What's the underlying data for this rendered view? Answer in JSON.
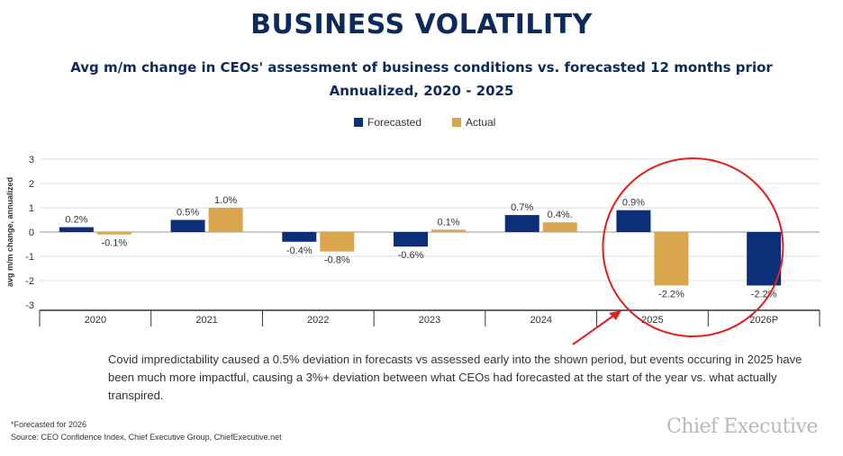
{
  "header": {
    "title": "BUSINESS VOLATILITY",
    "subtitle_line1": "Avg m/m change in CEOs' assessment of business conditions vs. forecasted 12 months prior",
    "subtitle_line2": "Annualized, 2020 - 2025"
  },
  "chart_data": {
    "type": "bar",
    "ylabel": "avg m/m change, annualized",
    "ylim": [
      -3,
      3
    ],
    "yticks": [
      3,
      2,
      1,
      0,
      -1,
      -2,
      -3
    ],
    "grid": true,
    "legend_position": "top-center",
    "categories": [
      "2020",
      "2021",
      "2022",
      "2023",
      "2024",
      "2025",
      "2026P"
    ],
    "series": [
      {
        "name": "Forecasted",
        "color": "#0d2f7a",
        "values": [
          0.2,
          0.5,
          -0.4,
          -0.6,
          0.7,
          0.9,
          -2.2
        ],
        "labels": [
          "0.2%",
          "0.5%",
          "-0.4%",
          "-0.6%",
          "0.7%",
          "0.9%",
          "-2.2%"
        ]
      },
      {
        "name": "Actual",
        "color": "#dba54e",
        "values": [
          -0.1,
          1.0,
          -0.8,
          0.1,
          0.4,
          -2.2,
          null
        ],
        "labels": [
          "-0.1%",
          "1.0%",
          "-0.8%",
          "0.1%",
          "0.4%.",
          "-2.2%",
          ""
        ]
      }
    ],
    "highlight": {
      "category": "2025",
      "color": "#e02020"
    }
  },
  "annotation": {
    "text": "Covid impredictability caused a 0.5% deviation in forecasts vs assessed early into the shown period, but events occuring in 2025 have been much more impactful, causing a 3%+ deviation between what CEOs had forecasted at the start of the year vs. what actually transpired."
  },
  "footer": {
    "footnote": "*Forecasted for 2026",
    "source": "Source: CEO Confidence Index, Chief Executive Group, ChiefExecutive.net",
    "brand": "Chief Executive"
  }
}
